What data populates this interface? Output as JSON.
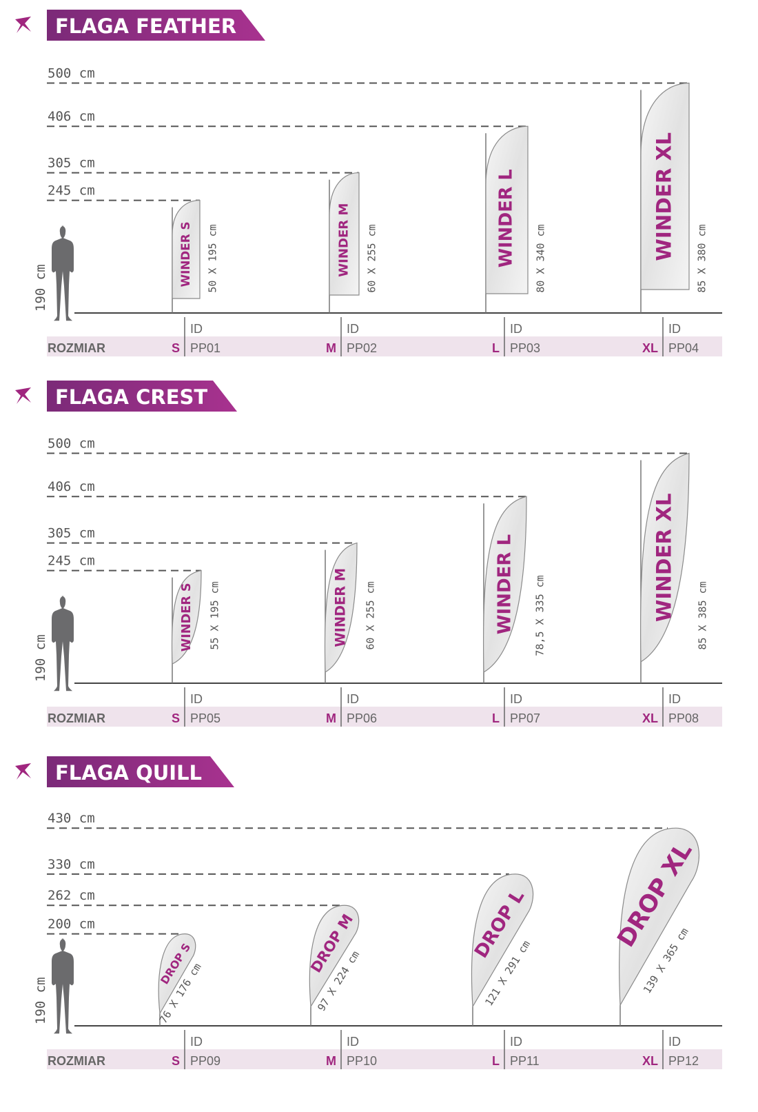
{
  "colors": {
    "accent": "#a0267f",
    "banner_start": "#7b2a78",
    "banner_end": "#a8328f",
    "row_bg": "#efe3ec",
    "text": "#555555"
  },
  "labels": {
    "id": "ID",
    "size_row": "ROZMIAR",
    "person_height": "190 cm"
  },
  "sections": [
    {
      "title": "FLAGA FEATHER",
      "shape": "feather",
      "flags": [
        {
          "height_label": "245 cm",
          "height_cm": 245,
          "brand": "WINDER S",
          "dims": "50 X 195 cm",
          "size": "S",
          "id": "PP01"
        },
        {
          "height_label": "305 cm",
          "height_cm": 305,
          "brand": "WINDER M",
          "dims": "60 X 255 cm",
          "size": "M",
          "id": "PP02"
        },
        {
          "height_label": "406 cm",
          "height_cm": 406,
          "brand": "WINDER L",
          "dims": "80 X 340 cm",
          "size": "L",
          "id": "PP03"
        },
        {
          "height_label": "500 cm",
          "height_cm": 500,
          "brand": "WINDER XL",
          "dims": "85 X 380 cm",
          "size": "XL",
          "id": "PP04"
        }
      ]
    },
    {
      "title": "FLAGA CREST",
      "shape": "crest",
      "flags": [
        {
          "height_label": "245 cm",
          "height_cm": 245,
          "brand": "WINDER S",
          "dims": "55 X 195 cm",
          "size": "S",
          "id": "PP05"
        },
        {
          "height_label": "305 cm",
          "height_cm": 305,
          "brand": "WINDER M",
          "dims": "60 X 255 cm",
          "size": "M",
          "id": "PP06"
        },
        {
          "height_label": "406 cm",
          "height_cm": 406,
          "brand": "WINDER L",
          "dims": "78,5 X 335 cm",
          "size": "L",
          "id": "PP07"
        },
        {
          "height_label": "500 cm",
          "height_cm": 500,
          "brand": "WINDER XL",
          "dims": "85 X 385 cm",
          "size": "XL",
          "id": "PP08"
        }
      ]
    },
    {
      "title": "FLAGA QUILL",
      "shape": "quill",
      "flags": [
        {
          "height_label": "200 cm",
          "height_cm": 200,
          "brand": "DROP S",
          "dims": "76 X 176 cm",
          "size": "S",
          "id": "PP09"
        },
        {
          "height_label": "262 cm",
          "height_cm": 262,
          "brand": "DROP M",
          "dims": "97 X 224 cm",
          "size": "M",
          "id": "PP10"
        },
        {
          "height_label": "330 cm",
          "height_cm": 330,
          "brand": "DROP L",
          "dims": "121 X 291 cm",
          "size": "L",
          "id": "PP11"
        },
        {
          "height_label": "430 cm",
          "height_cm": 430,
          "brand": "DROP XL",
          "dims": "139 X 365 cm",
          "size": "XL",
          "id": "PP12"
        }
      ]
    }
  ]
}
